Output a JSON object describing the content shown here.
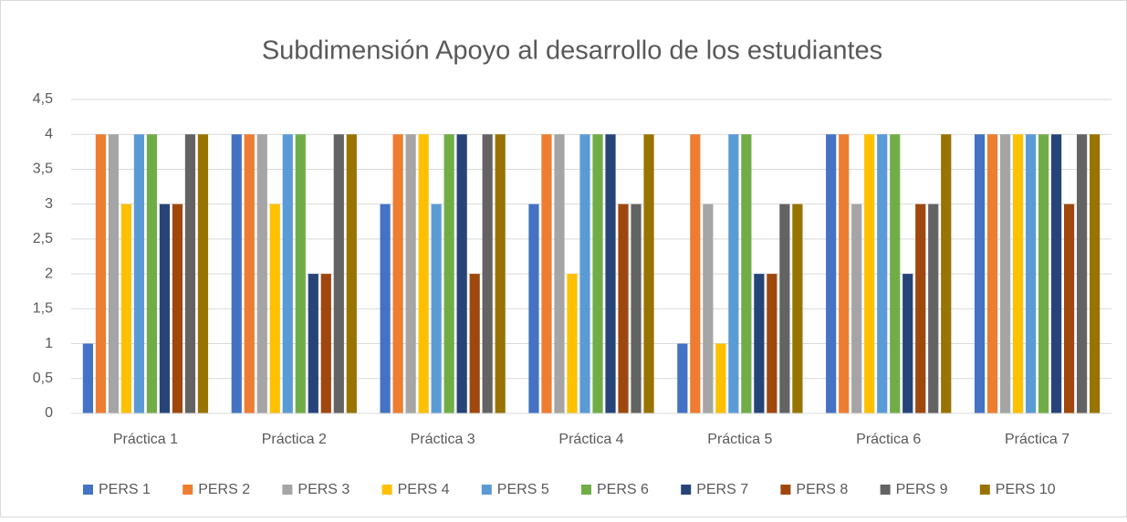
{
  "chart_data": {
    "type": "bar",
    "title": "Subdimensión Apoyo al desarrollo de los estudiantes",
    "categories": [
      "Práctica 1",
      "Práctica 2",
      "Práctica 3",
      "Práctica 4",
      "Práctica 5",
      "Práctica 6",
      "Práctica 7"
    ],
    "series": [
      {
        "name": "PERS 1",
        "color": "#4472c4",
        "values": [
          1,
          4,
          3,
          3,
          1,
          4,
          4
        ]
      },
      {
        "name": "PERS 2",
        "color": "#ed7d31",
        "values": [
          4,
          4,
          4,
          4,
          4,
          4,
          4
        ]
      },
      {
        "name": "PERS 3",
        "color": "#a5a5a5",
        "values": [
          4,
          4,
          4,
          4,
          3,
          3,
          4
        ]
      },
      {
        "name": "PERS 4",
        "color": "#ffc000",
        "values": [
          3,
          3,
          4,
          2,
          1,
          4,
          4
        ]
      },
      {
        "name": "PERS 5",
        "color": "#5b9bd5",
        "values": [
          4,
          4,
          3,
          4,
          4,
          4,
          4
        ]
      },
      {
        "name": "PERS 6",
        "color": "#70ad47",
        "values": [
          4,
          4,
          4,
          4,
          4,
          4,
          4
        ]
      },
      {
        "name": "PERS 7",
        "color": "#264478",
        "values": [
          3,
          2,
          4,
          4,
          2,
          2,
          4
        ]
      },
      {
        "name": "PERS 8",
        "color": "#9e480e",
        "values": [
          3,
          2,
          2,
          3,
          2,
          3,
          3
        ]
      },
      {
        "name": "PERS 9",
        "color": "#636363",
        "values": [
          4,
          4,
          4,
          3,
          3,
          3,
          4
        ]
      },
      {
        "name": "PERS 10",
        "color": "#997300",
        "values": [
          4,
          4,
          4,
          4,
          3,
          4,
          4
        ]
      }
    ],
    "ylim": [
      0,
      4.5
    ],
    "yticks": [
      0,
      {
        "value": 0.5,
        "label": "0,5"
      },
      1,
      {
        "value": 1.5,
        "label": "1,5"
      },
      2,
      {
        "value": 2.5,
        "label": "2,5"
      },
      3,
      {
        "value": 3.5,
        "label": "3,5"
      },
      4,
      {
        "value": 4.5,
        "label": "4,5"
      }
    ],
    "grid": true,
    "legend": "bottom"
  }
}
